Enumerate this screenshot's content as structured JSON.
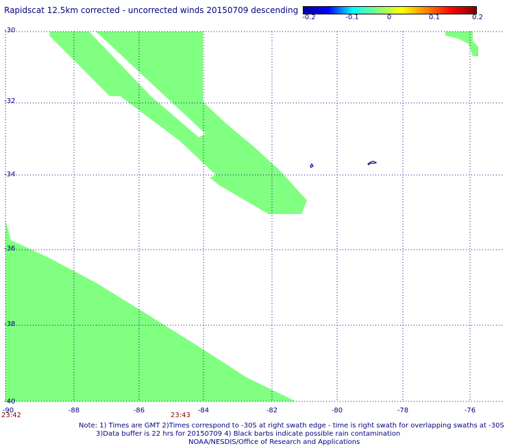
{
  "title": "Rapidscat 12.5km corrected - uncorrected winds 20150709 descending",
  "colorbar": {
    "ticks": [
      "-0.2",
      "-0.1",
      "0",
      "0.1",
      "0.2"
    ],
    "colors": [
      "#0000a0",
      "#0000ff",
      "#00ffff",
      "#80ff80",
      "#ffff00",
      "#ff8000",
      "#ff0000",
      "#800000"
    ]
  },
  "y_labels": [
    "-30",
    "-32",
    "-34",
    "-36",
    "-38",
    "-40"
  ],
  "x_labels": [
    "-90",
    "-88",
    "-86",
    "-84",
    "-82",
    "-80",
    "-78",
    "-76"
  ],
  "times": [
    "23:42",
    "23:43"
  ],
  "notes": {
    "line1": "Note: 1) Times are GMT 2)Times correspond to -30S at right swath edge - time is right swath for overlapping swaths at -30S",
    "line2": "3)Data buffer is 22 hrs for 20150709 4) Black barbs indicate possible rain contamination",
    "line3": "NOAA/NESDIS/Office of Research and Applications"
  },
  "swath_color": "#80ff80",
  "grid_color": "#000080",
  "land_color": "#000080"
}
